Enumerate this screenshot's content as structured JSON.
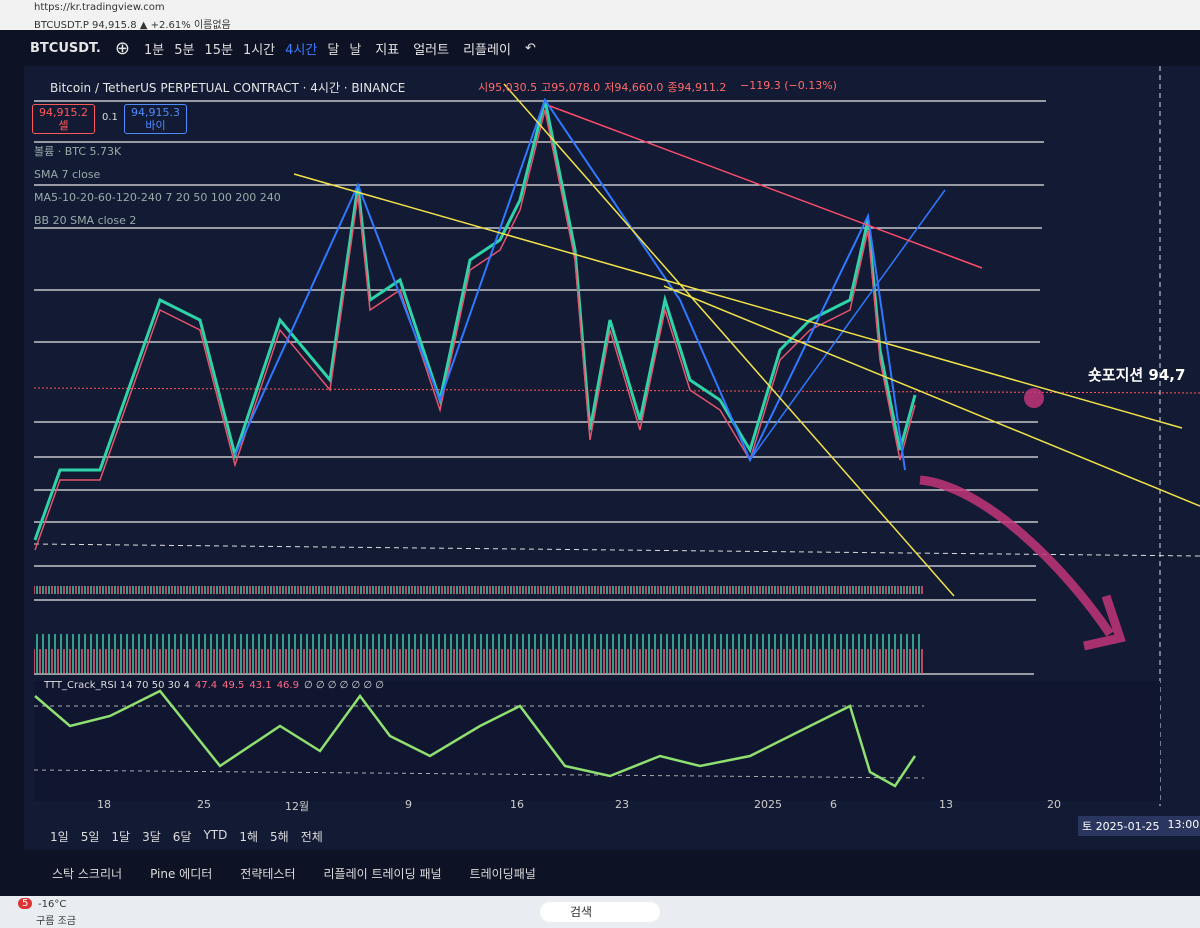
{
  "browser": {
    "url": "https://kr.tradingview.com",
    "tab": "BTCUSDT.P 94,915.8 ▲ +2.61% 이름없음"
  },
  "toolbar": {
    "symbol": "BTCUSDT.",
    "intervals": [
      "1분",
      "5분",
      "15분",
      "1시간",
      "4시간",
      "달",
      "날"
    ],
    "indicators": "지표",
    "alert": "얼러트",
    "replay": "리플레이"
  },
  "header": {
    "title": "Bitcoin / TetherUS PERPETUAL CONTRACT · 4시간 · BINANCE",
    "ohlc": [
      "시95,030.5",
      "고95,078.0",
      "저94,660.0",
      "종94,911.2"
    ],
    "change": "−119.3 (−0.13%)"
  },
  "trade": {
    "sell_price": "94,915.2",
    "sell": "셀",
    "spread": "0.1",
    "buy_price": "94,915.3",
    "buy": "바이"
  },
  "indicators": [
    "볼륨 · BTC 5.73K",
    "SMA 7 close",
    "MA5-10-20-60-120-240 7 20 50 100 200 240",
    "BB 20 SMA close 2"
  ],
  "rsi": {
    "label": "TTT_Crack_RSI 14 70 50 30 4",
    "values": [
      "47.4",
      "49.5",
      "43.1",
      "46.9"
    ],
    "extra": "∅ ∅ ∅ ∅ ∅ ∅ ∅"
  },
  "annotation": "숏포지션 94,7",
  "x_axis": [
    "18",
    "25",
    "12월",
    "9",
    "16",
    "23",
    "2025",
    "6",
    "13",
    "20"
  ],
  "crosshair": {
    "date": "토 2025-01-25",
    "time": "13:00"
  },
  "periods": [
    "1일",
    "5일",
    "1달",
    "3달",
    "6달",
    "YTD",
    "1해",
    "5해",
    "전체"
  ],
  "panels": [
    "스탁 스크리너",
    "Pine 에디터",
    "전략테스터",
    "리플레이 트레이딩 패널",
    "트레이딩패널"
  ],
  "taskbar": {
    "badge": "5",
    "temp": "-16°C",
    "weather": "구름 조금",
    "search": "검색"
  }
}
